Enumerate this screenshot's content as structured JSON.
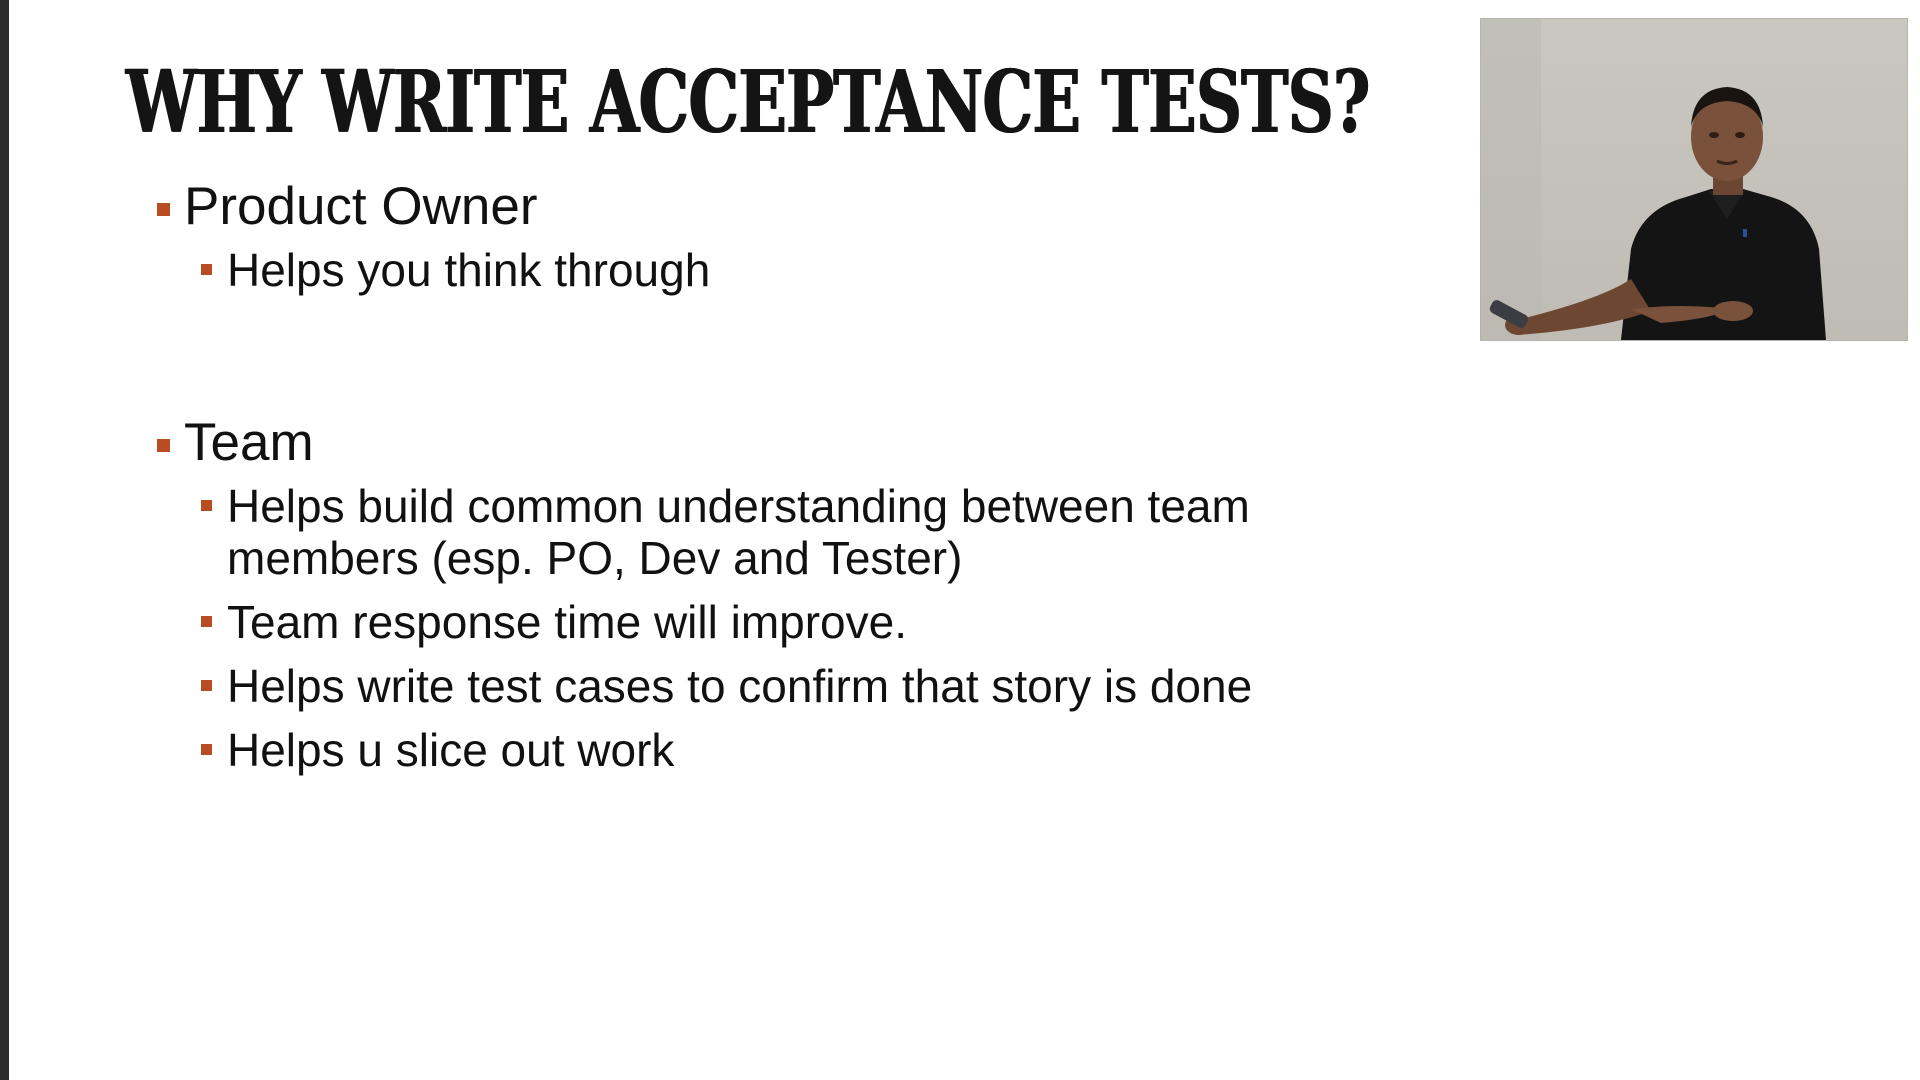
{
  "slide": {
    "title": "WHY WRITE ACCEPTANCE TESTS?",
    "sections": [
      {
        "heading": "Product Owner",
        "points": [
          "Helps you think through"
        ]
      },
      {
        "heading": "Team",
        "points": [
          "Helps build common understanding between team members (esp. PO, Dev and Tester)",
          "Team response time will improve.",
          "Helps write test cases to confirm that story is done",
          "Helps u slice out work"
        ]
      }
    ]
  },
  "colors": {
    "bullet": "#b84c23",
    "text": "#111111",
    "left_edge": "#2a2a2a"
  },
  "icons": {
    "bullet_shape": "square"
  }
}
